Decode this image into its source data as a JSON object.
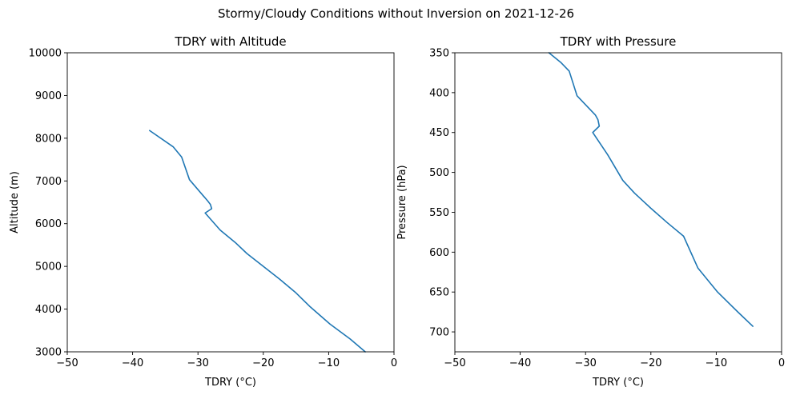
{
  "figure": {
    "suptitle": "Stormy/Cloudy Conditions without Inversion on 2021-12-26"
  },
  "chart_data": [
    {
      "type": "line",
      "title": "TDRY with Altitude",
      "xlabel": "TDRY (°C)",
      "ylabel": "Altitude (m)",
      "xlim": [
        -50,
        0
      ],
      "ylim": [
        3000,
        10000
      ],
      "y_inverted": false,
      "xticks": [
        -50,
        -40,
        -30,
        -20,
        -10,
        0
      ],
      "yticks": [
        3000,
        4000,
        5000,
        6000,
        7000,
        8000,
        9000,
        10000
      ],
      "grid": false,
      "color": "#1f77b4",
      "series": [
        {
          "x": [
            -4.4,
            -6.7,
            -9.8,
            -12.8,
            -15.0,
            -17.5,
            -20.0,
            -22.5,
            -24.3,
            -26.6,
            -28.9,
            -27.9,
            -28.1,
            -28.5,
            -31.3,
            -32.5,
            -33.8,
            -37.4
          ],
          "y": [
            3000,
            3300,
            3650,
            4050,
            4380,
            4700,
            5000,
            5300,
            5560,
            5850,
            6250,
            6350,
            6450,
            6530,
            7030,
            7560,
            7800,
            8180
          ]
        }
      ]
    },
    {
      "type": "line",
      "title": "TDRY with Pressure",
      "xlabel": "TDRY (°C)",
      "ylabel": "Pressure (hPa)",
      "xlim": [
        -50,
        0
      ],
      "ylim": [
        725,
        350
      ],
      "y_inverted": true,
      "xticks": [
        -50,
        -40,
        -30,
        -20,
        -10,
        0
      ],
      "yticks": [
        350,
        400,
        450,
        500,
        550,
        600,
        650,
        700
      ],
      "grid": false,
      "color": "#1f77b4",
      "series": [
        {
          "x": [
            -4.4,
            -6.7,
            -9.8,
            -12.8,
            -15.0,
            -17.5,
            -20.0,
            -22.5,
            -24.3,
            -26.6,
            -28.9,
            -27.9,
            -28.1,
            -28.5,
            -31.3,
            -32.5,
            -33.8,
            -35.6
          ],
          "y": [
            693,
            675,
            650,
            620,
            580,
            563,
            545,
            526,
            510,
            478,
            450,
            442,
            434,
            428,
            404,
            373,
            362,
            350
          ]
        }
      ]
    }
  ]
}
